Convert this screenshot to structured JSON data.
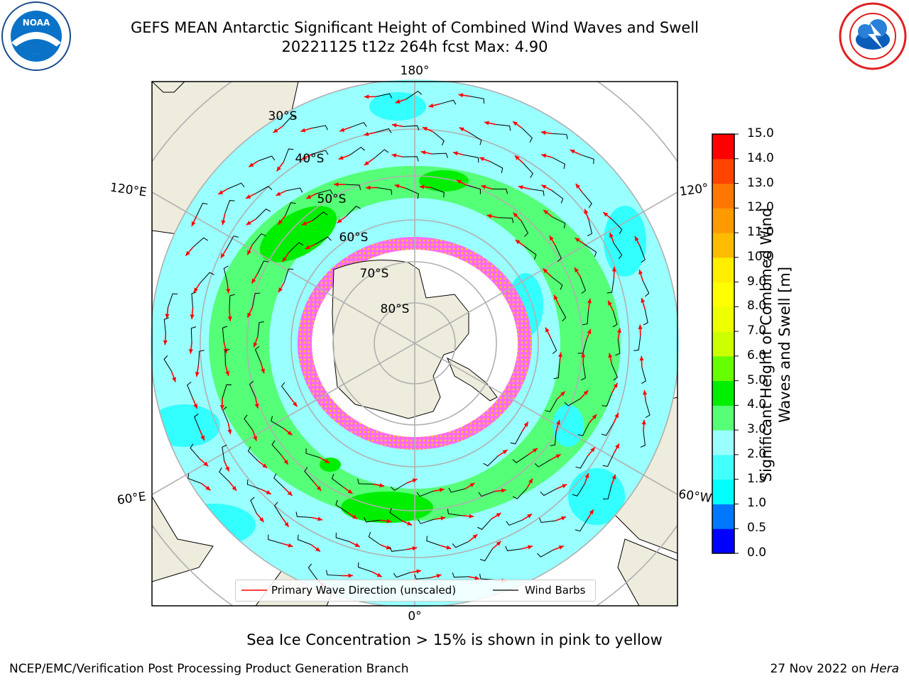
{
  "title": {
    "line1": "GEFS MEAN Antarctic Significant Height of Combined Wind Waves and Swell",
    "line2": "20221125 t12z 264h fcst   Max: 4.90"
  },
  "map": {
    "projection": "south-polar-stereographic",
    "longitude_labels": [
      "180°",
      "120°E",
      "120°",
      "60°E",
      "60°W",
      "0°"
    ],
    "latitude_labels": [
      "30°S",
      "40°S",
      "50°S",
      "60°S",
      "70°S",
      "80°S"
    ],
    "land_color": "#eeecdd",
    "ocean_low_color": "#33ffff",
    "ocean_mid_color": "#99ffff",
    "ocean_high_color": "#55ff77",
    "ice_color": "#ffffff",
    "ice_edge_colors": [
      "#ff44ff",
      "#ffaa00",
      "#ffff55"
    ]
  },
  "colorbar": {
    "title": "Significant Height of Combined Wind Waves and Swell [m]",
    "tick_labels": [
      "15.0",
      "14.0",
      "13.0",
      "12.0",
      "11.0",
      "10.0",
      "9.0",
      "8.0",
      "7.0",
      "6.0",
      "5.0",
      "4.0",
      "3.0",
      "2.0",
      "1.5",
      "1.0",
      "0.5",
      "0.0"
    ],
    "colors": [
      "#0000ff",
      "#0077ff",
      "#00ffff",
      "#44ffff",
      "#99ffff",
      "#55ff77",
      "#00ee00",
      "#66ff00",
      "#ccff00",
      "#eeff00",
      "#ffff00",
      "#ffee00",
      "#ffbb00",
      "#ff9900",
      "#ff7700",
      "#ff4400",
      "#ff0000"
    ]
  },
  "legend": {
    "wave_direction": "Primary Wave Direction (unscaled)",
    "wind_barbs": "Wind Barbs"
  },
  "note": "Sea Ice Concentration > 15% is shown in pink to yellow",
  "footer": {
    "left": "NCEP/EMC/Verification Post Processing Product Generation Branch",
    "right_date": "27 Nov 2022 on ",
    "right_machine": "Hera"
  },
  "logos": {
    "noaa_text": "NOAA",
    "nws_text": "NATIONAL WEATHER SERVICE"
  }
}
